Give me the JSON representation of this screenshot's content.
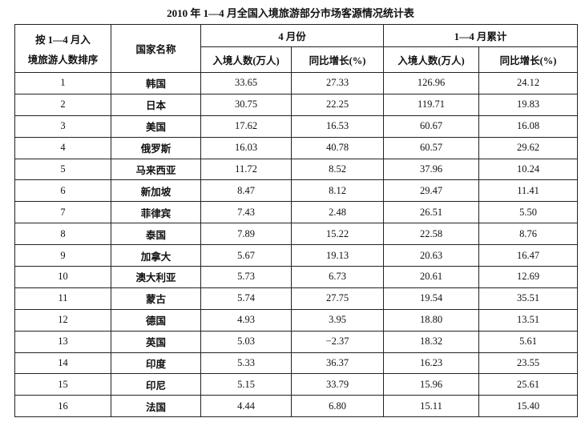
{
  "title": "2010 年 1—4 月全国入境旅游部分市场客源情况统计表",
  "header": {
    "rank_label": [
      "按 1—4 月入",
      "境旅游人数排序"
    ],
    "country": "国家名称",
    "april": "4 月份",
    "cumulative": "1—4 月累计",
    "sub": [
      "入境人数(万人)",
      "同比增长(%)",
      "入境人数(万人)",
      "同比增长(%)"
    ]
  },
  "table": {
    "rows": [
      [
        "1",
        "韩国",
        "33.65",
        "27.33",
        "126.96",
        "24.12"
      ],
      [
        "2",
        "日本",
        "30.75",
        "22.25",
        "119.71",
        "19.83"
      ],
      [
        "3",
        "美国",
        "17.62",
        "16.53",
        "60.67",
        "16.08"
      ],
      [
        "4",
        "俄罗斯",
        "16.03",
        "40.78",
        "60.57",
        "29.62"
      ],
      [
        "5",
        "马来西亚",
        "11.72",
        "8.52",
        "37.96",
        "10.24"
      ],
      [
        "6",
        "新加坡",
        "8.47",
        "8.12",
        "29.47",
        "11.41"
      ],
      [
        "7",
        "菲律宾",
        "7.43",
        "2.48",
        "26.51",
        "5.50"
      ],
      [
        "8",
        "泰国",
        "7.89",
        "15.22",
        "22.58",
        "8.76"
      ],
      [
        "9",
        "加拿大",
        "5.67",
        "19.13",
        "20.63",
        "16.47"
      ],
      [
        "10",
        "澳大利亚",
        "5.73",
        "6.73",
        "20.61",
        "12.69"
      ],
      [
        "11",
        "蒙古",
        "5.74",
        "27.75",
        "19.54",
        "35.51"
      ],
      [
        "12",
        "德国",
        "4.93",
        "3.95",
        "18.80",
        "13.51"
      ],
      [
        "13",
        "英国",
        "5.03",
        "−2.37",
        "18.32",
        "5.61"
      ],
      [
        "14",
        "印度",
        "5.33",
        "36.37",
        "16.23",
        "23.55"
      ],
      [
        "15",
        "印尼",
        "5.15",
        "33.79",
        "15.96",
        "25.61"
      ],
      [
        "16",
        "法国",
        "4.44",
        "6.80",
        "15.11",
        "15.40"
      ]
    ]
  }
}
